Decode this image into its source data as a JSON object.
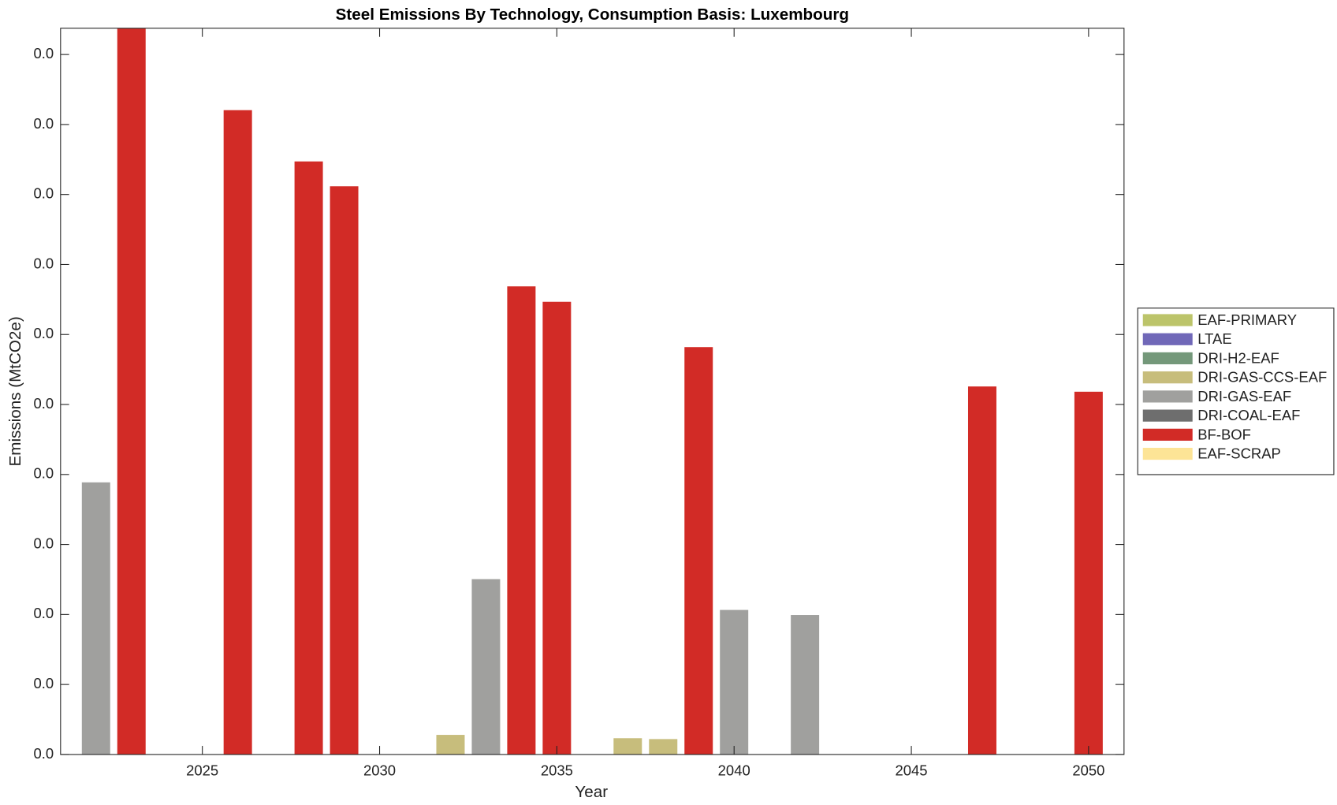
{
  "chart_data": {
    "type": "stacked-bar",
    "title": "Steel Emissions By Technology, Consumption Basis: Luxembourg",
    "x_label": "Year",
    "y_label": "Emissions (MtCO2e)",
    "x": [
      2022,
      2023,
      2026,
      2028,
      2029,
      2032,
      2033,
      2034,
      2035,
      2037,
      2038,
      2039,
      2040,
      2042,
      2047,
      2050
    ],
    "series": [
      {
        "name": "EAF-PRIMARY",
        "color": "#bcc46a",
        "values": [
          0,
          0,
          0,
          0,
          0,
          0,
          0,
          0,
          0,
          0,
          0,
          0,
          0,
          0,
          0,
          0
        ]
      },
      {
        "name": "LTAE",
        "color": "#7068b8",
        "values": [
          0,
          0,
          0,
          0,
          0,
          0,
          0,
          0,
          0,
          0,
          0,
          0,
          0,
          0,
          0,
          0
        ]
      },
      {
        "name": "DRI-H2-EAF",
        "color": "#74987a",
        "values": [
          0,
          0,
          0,
          0,
          0,
          0,
          0,
          0,
          0,
          0,
          0,
          0,
          0,
          0,
          0,
          0
        ]
      },
      {
        "name": "DRI-GAS-CCS-EAF",
        "color": "#c7bd7c",
        "values": [
          0,
          0,
          0,
          0,
          0,
          0.00112,
          0,
          0,
          0,
          0.00093,
          0.00088,
          0,
          0,
          0,
          0,
          0
        ]
      },
      {
        "name": "DRI-GAS-EAF",
        "color": "#a0a09e",
        "values": [
          0.01555,
          0,
          0,
          0,
          0,
          0,
          0.01002,
          0,
          0,
          0,
          0,
          0,
          0.00826,
          0.00797,
          0,
          0
        ]
      },
      {
        "name": "DRI-COAL-EAF",
        "color": "#6e6e6e",
        "values": [
          0,
          0,
          0,
          0,
          0,
          0,
          0,
          0,
          0,
          0,
          0,
          0,
          0,
          0,
          0,
          0
        ]
      },
      {
        "name": "BF-BOF",
        "color": "#d22b26",
        "values": [
          0,
          0.0415,
          0.03682,
          0.03389,
          0.03247,
          0,
          0,
          0.02675,
          0.02587,
          0,
          0,
          0.02328,
          0,
          0,
          0.02103,
          0.02073
        ]
      },
      {
        "name": "EAF-SCRAP",
        "color": "#fde496",
        "values": [
          0,
          0,
          0,
          0,
          0,
          0,
          0,
          0,
          0,
          0,
          0,
          0,
          0,
          0,
          0,
          0
        ]
      }
    ],
    "xlim": [
      2021,
      2051
    ],
    "xticks": [
      2025,
      2030,
      2035,
      2040,
      2045,
      2050
    ],
    "ylim": [
      0,
      0.0415
    ],
    "yticks": [
      {
        "value": 0,
        "label": "0.0"
      },
      {
        "value": 0.004,
        "label": "0.0"
      },
      {
        "value": 0.008,
        "label": "0.0"
      },
      {
        "value": 0.012,
        "label": "0.0"
      },
      {
        "value": 0.016,
        "label": "0.0"
      },
      {
        "value": 0.02,
        "label": "0.0"
      },
      {
        "value": 0.024,
        "label": "0.0"
      },
      {
        "value": 0.028,
        "label": "0.0"
      },
      {
        "value": 0.032,
        "label": "0.0"
      },
      {
        "value": 0.036,
        "label": "0.0"
      },
      {
        "value": 0.04,
        "label": "0.0"
      }
    ],
    "legend": "east"
  }
}
